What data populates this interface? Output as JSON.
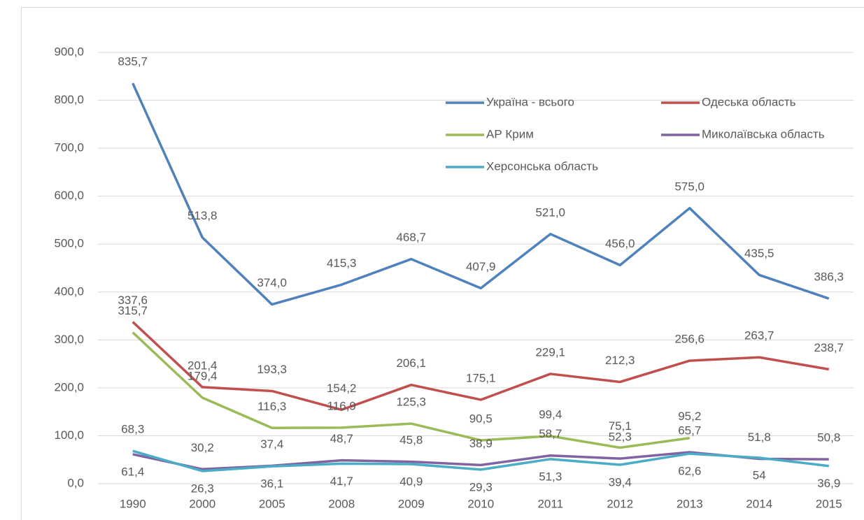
{
  "chart_data": {
    "type": "line",
    "categories": [
      "1990",
      "2000",
      "2005",
      "2008",
      "2009",
      "2010",
      "2011",
      "2012",
      "2013",
      "2014",
      "2015"
    ],
    "ylim": [
      0,
      900
    ],
    "yticks": [
      {
        "value": 0,
        "label": "0,0"
      },
      {
        "value": 100,
        "label": "100,0"
      },
      {
        "value": 200,
        "label": "200,0"
      },
      {
        "value": 300,
        "label": "300,0"
      },
      {
        "value": 400,
        "label": "400,0"
      },
      {
        "value": 500,
        "label": "500,0"
      },
      {
        "value": 600,
        "label": "600,0"
      },
      {
        "value": 700,
        "label": "700,0"
      },
      {
        "value": 800,
        "label": "800,0"
      },
      {
        "value": 900,
        "label": "900,0"
      }
    ],
    "grid": true,
    "series": [
      {
        "name": "Україна - всього",
        "color": "#4f81bd",
        "values": [
          835.7,
          513.8,
          374.0,
          415.3,
          468.7,
          407.9,
          521.0,
          456.0,
          575.0,
          435.5,
          386.3
        ],
        "value_labels": [
          "835,7",
          "513,8",
          "374,0",
          "415,3",
          "468,7",
          "407,9",
          "521,0",
          "456,0",
          "575,0",
          "435,5",
          "386,3"
        ]
      },
      {
        "name": "Одеська область",
        "color": "#c0504d",
        "values": [
          337.6,
          201.4,
          193.3,
          154.2,
          206.1,
          175.1,
          229.1,
          212.3,
          256.6,
          263.7,
          238.7
        ],
        "value_labels": [
          "337,6",
          "201,4",
          "193,3",
          "154,2",
          "206,1",
          "175,1",
          "229,1",
          "212,3",
          "256,6",
          "263,7",
          "238,7"
        ]
      },
      {
        "name": "АР Крим",
        "color": "#9bbb59",
        "values": [
          315.7,
          179.4,
          116.3,
          116.9,
          125.3,
          90.5,
          99.4,
          75.1,
          95.2,
          null,
          null
        ],
        "value_labels": [
          "315,7",
          "179,4",
          "116,3",
          "116,9",
          "125,3",
          "90,5",
          "99,4",
          "75,1",
          "95,2",
          null,
          null
        ]
      },
      {
        "name": "Миколаївська область",
        "color": "#8064a2",
        "values": [
          61.4,
          30.2,
          37.4,
          48.7,
          45.8,
          38.9,
          58.7,
          52.3,
          65.7,
          51.8,
          50.8
        ],
        "value_labels": [
          "61,4",
          "30,2",
          "37,4",
          "48,7",
          "45,8",
          "38,9",
          "58,7",
          "52,3",
          "65,7",
          "51,8",
          "50,8"
        ]
      },
      {
        "name": "Херсонська область",
        "color": "#4bacc6",
        "values": [
          68.3,
          26.3,
          36.1,
          41.7,
          40.9,
          29.3,
          51.3,
          39.4,
          62.6,
          54,
          36.9
        ],
        "value_labels": [
          "68,3",
          "26,3",
          "36,1",
          "41,7",
          "40,9",
          "29,3",
          "51,3",
          "39,4",
          "62,6",
          "54",
          "36,9"
        ]
      }
    ]
  }
}
